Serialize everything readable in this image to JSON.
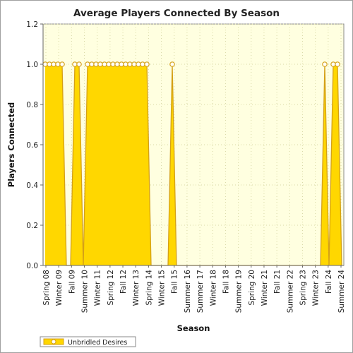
{
  "chart_data": {
    "type": "area",
    "title": "Average Players Connected By Season",
    "xlabel": "Season",
    "ylabel": "Players Connected",
    "ylim": [
      0,
      1.2
    ],
    "yticks": [
      "0.0",
      "0.2",
      "0.4",
      "0.6",
      "0.8",
      "1.0",
      "1.2"
    ],
    "grid": true,
    "legend_position": "bottom-left",
    "colors": {
      "plot_bg": "#ffffe0",
      "area_fill": "#ffd700",
      "area_light": "#ffff00",
      "line": "#d4a017",
      "marker_fill": "#ffffff",
      "grid": "#d9d9a6"
    },
    "tick_labels": [
      "Spring 08",
      "Winter 09",
      "Fall 09",
      "Summer 10",
      "Winter 11",
      "Spring 12",
      "Fall 12",
      "Winter 13",
      "Spring 14",
      "Winter 15",
      "Fall 15",
      "Summer 16",
      "Summer 17",
      "Winter 18",
      "Fall 18",
      "Summer 19",
      "Spring 20",
      "Winter 21",
      "Fall 21",
      "Summer 22",
      "Spring 23",
      "Winter 23",
      "Fall 24",
      "Summer 24"
    ],
    "series": [
      {
        "name": "Unbridled Desires",
        "values": [
          1,
          1,
          1,
          1,
          1,
          0,
          0,
          1,
          1,
          0,
          1,
          1,
          1,
          1,
          1,
          1,
          1,
          1,
          1,
          1,
          1,
          1,
          1,
          1,
          1,
          0,
          0,
          0,
          0,
          0,
          1,
          0,
          0,
          0,
          0,
          0,
          0,
          0,
          0,
          0,
          0,
          0,
          0,
          0,
          0,
          0,
          0,
          0,
          0,
          0,
          0,
          0,
          0,
          0,
          0,
          0,
          0,
          0,
          0,
          0,
          0,
          0,
          0,
          0,
          0,
          0,
          1,
          0,
          1,
          1,
          0
        ],
        "markers": [
          true,
          true,
          true,
          true,
          true,
          false,
          false,
          true,
          true,
          false,
          true,
          true,
          true,
          true,
          true,
          true,
          true,
          true,
          true,
          true,
          true,
          true,
          true,
          true,
          true,
          false,
          false,
          false,
          false,
          false,
          true,
          false,
          false,
          false,
          false,
          false,
          false,
          false,
          false,
          false,
          false,
          false,
          false,
          false,
          false,
          false,
          false,
          false,
          false,
          false,
          false,
          false,
          false,
          false,
          false,
          false,
          false,
          false,
          false,
          false,
          false,
          false,
          false,
          false,
          false,
          false,
          true,
          false,
          true,
          true,
          false
        ]
      }
    ]
  }
}
